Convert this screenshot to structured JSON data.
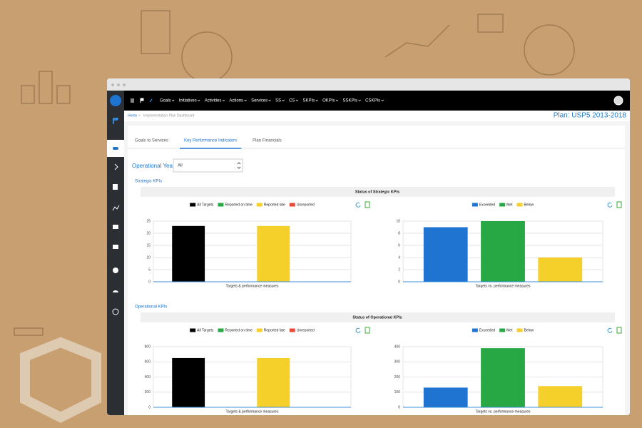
{
  "nav": {
    "items": [
      "Goals",
      "Initiatives",
      "Activities",
      "Actions",
      "Services",
      "SS",
      "CS",
      "SKPIs",
      "OKPIs",
      "SSKPIs",
      "CSKPIs"
    ]
  },
  "breadcrumb": [
    "Home",
    "Implementation Plan Dashboard"
  ],
  "plan_title": "Plan: USP5 2013-2018",
  "tabs": [
    "Goals to Services",
    "Key Performance Indicators",
    "Plan Financials"
  ],
  "filter": {
    "label": "Operational Year",
    "value": "All"
  },
  "sections": [
    {
      "title": "Strategic KPIs",
      "panel_title": "Status of Strategic KPIs",
      "charts": [
        {
          "type": "bar",
          "x_label": "Targets & performance measures",
          "ylim": [
            0,
            25
          ],
          "yticks": [
            0,
            5,
            10,
            15,
            20,
            25
          ],
          "series": [
            {
              "name": "All Targets",
              "color": "#000000",
              "values": [
                23
              ]
            },
            {
              "name": "Reported on time",
              "color": "#28a745",
              "values": [
                0
              ]
            },
            {
              "name": "Reported late",
              "color": "#f5cf2a",
              "values": [
                23
              ]
            },
            {
              "name": "Unreported",
              "color": "#e74c3c",
              "values": [
                0
              ]
            }
          ]
        },
        {
          "type": "bar",
          "x_label": "Targets vs. performance measures",
          "ylim": [
            0,
            10
          ],
          "yticks": [
            0,
            2,
            4,
            6,
            8,
            10
          ],
          "series": [
            {
              "name": "Exceeded",
              "color": "#1f74d2",
              "values": [
                9
              ]
            },
            {
              "name": "Met",
              "color": "#28a745",
              "values": [
                10
              ]
            },
            {
              "name": "Below",
              "color": "#f5cf2a",
              "values": [
                4
              ]
            }
          ]
        }
      ]
    },
    {
      "title": "Operational KPIs",
      "panel_title": "Status of Operational KPIs",
      "charts": [
        {
          "type": "bar",
          "x_label": "Targets & performance measures",
          "ylim": [
            0,
            800
          ],
          "yticks": [
            0,
            200,
            400,
            600,
            800
          ],
          "series": [
            {
              "name": "All Targets",
              "color": "#000000",
              "values": [
                650
              ]
            },
            {
              "name": "Reported on time",
              "color": "#28a745",
              "values": [
                0
              ]
            },
            {
              "name": "Reported late",
              "color": "#f5cf2a",
              "values": [
                650
              ]
            },
            {
              "name": "Unreported",
              "color": "#e74c3c",
              "values": [
                0
              ]
            }
          ]
        },
        {
          "type": "bar",
          "x_label": "Targets vs. performance measures",
          "ylim": [
            0,
            400
          ],
          "yticks": [
            0,
            100,
            200,
            300,
            400
          ],
          "series": [
            {
              "name": "Exceeded",
              "color": "#1f74d2",
              "values": [
                130
              ]
            },
            {
              "name": "Met",
              "color": "#28a745",
              "values": [
                390
              ]
            },
            {
              "name": "Below",
              "color": "#f5cf2a",
              "values": [
                140
              ]
            }
          ]
        }
      ]
    }
  ]
}
